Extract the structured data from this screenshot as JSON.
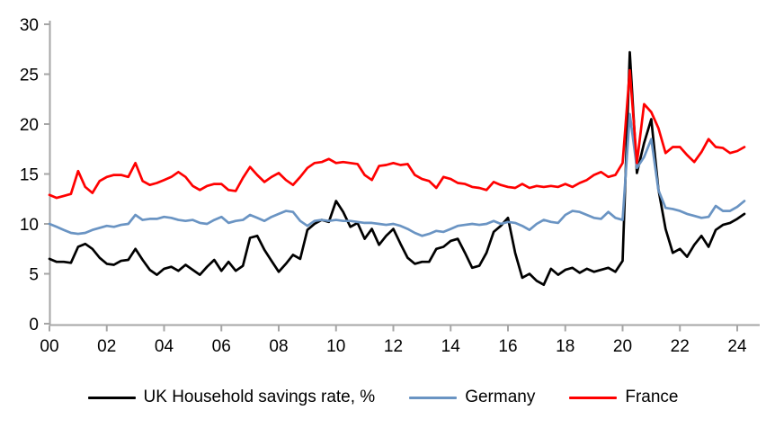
{
  "chart_data": {
    "type": "line",
    "x_unit": "quarterly",
    "x_start": "2000Q1",
    "x_end": "2024Q2",
    "x_tick_labels": [
      "00",
      "02",
      "04",
      "06",
      "08",
      "10",
      "12",
      "14",
      "16",
      "18",
      "20",
      "22",
      "24"
    ],
    "x_ticks_every_quarters": 8,
    "ylim": [
      0,
      30
    ],
    "y_ticks": [
      0,
      5,
      10,
      15,
      20,
      25,
      30
    ],
    "y_tick_labels": [
      "0",
      "5",
      "10",
      "15",
      "20",
      "25",
      "30"
    ],
    "grid": false,
    "legend_position": "bottom",
    "axis_color": "#a6a6a6",
    "background": "#ffffff",
    "series": [
      {
        "name": "UK Household savings rate, %",
        "color": "#000000",
        "values": [
          6.5,
          6.2,
          6.2,
          6.1,
          7.7,
          8.0,
          7.5,
          6.6,
          6.0,
          5.9,
          6.3,
          6.4,
          7.5,
          6.4,
          5.4,
          4.9,
          5.5,
          5.7,
          5.3,
          5.9,
          5.4,
          4.9,
          5.7,
          6.4,
          5.3,
          6.2,
          5.3,
          5.8,
          8.6,
          8.8,
          7.4,
          6.3,
          5.2,
          6.0,
          6.9,
          6.5,
          9.4,
          10.0,
          10.4,
          10.2,
          12.3,
          11.2,
          9.7,
          10.1,
          8.5,
          9.5,
          7.9,
          8.8,
          9.5,
          8.0,
          6.6,
          6.0,
          6.2,
          6.2,
          7.5,
          7.7,
          8.3,
          8.5,
          7.1,
          5.6,
          5.8,
          7.1,
          9.2,
          9.8,
          10.6,
          7.1,
          4.6,
          5.0,
          4.3,
          3.9,
          5.5,
          4.9,
          5.4,
          5.6,
          5.1,
          5.5,
          5.2,
          5.4,
          5.6,
          5.2,
          6.3,
          27.2,
          15.1,
          18.1,
          20.5,
          13.5,
          9.5,
          7.1,
          7.5,
          6.7,
          7.9,
          8.8,
          7.7,
          9.4,
          9.9,
          10.1,
          10.5,
          11.0
        ]
      },
      {
        "name": "Germany",
        "color": "#6a94c3",
        "values": [
          10.0,
          9.7,
          9.4,
          9.1,
          9.0,
          9.1,
          9.4,
          9.6,
          9.8,
          9.7,
          9.9,
          10.0,
          10.9,
          10.4,
          10.5,
          10.5,
          10.7,
          10.6,
          10.4,
          10.3,
          10.4,
          10.1,
          10.0,
          10.4,
          10.7,
          10.1,
          10.3,
          10.4,
          10.9,
          10.6,
          10.3,
          10.7,
          11.0,
          11.3,
          11.2,
          10.3,
          9.8,
          10.3,
          10.4,
          10.3,
          10.4,
          10.3,
          10.3,
          10.2,
          10.1,
          10.1,
          10.0,
          9.9,
          10.0,
          9.8,
          9.5,
          9.1,
          8.8,
          9.0,
          9.3,
          9.2,
          9.5,
          9.8,
          9.9,
          10.0,
          9.9,
          10.0,
          10.3,
          10.0,
          10.2,
          10.1,
          9.8,
          9.4,
          10.0,
          10.4,
          10.2,
          10.1,
          10.9,
          11.3,
          11.2,
          10.9,
          10.6,
          10.5,
          11.2,
          10.6,
          10.4,
          21.0,
          15.6,
          16.7,
          18.5,
          13.4,
          11.6,
          11.5,
          11.3,
          11.0,
          10.8,
          10.6,
          10.7,
          11.8,
          11.3,
          11.3,
          11.7,
          12.3
        ]
      },
      {
        "name": "France",
        "color": "#ff0000",
        "values": [
          12.9,
          12.6,
          12.8,
          13.0,
          15.3,
          13.7,
          13.1,
          14.3,
          14.7,
          14.9,
          14.9,
          14.7,
          16.1,
          14.3,
          13.9,
          14.1,
          14.4,
          14.7,
          15.2,
          14.7,
          13.8,
          13.4,
          13.8,
          14.0,
          14.0,
          13.4,
          13.3,
          14.6,
          15.7,
          14.9,
          14.2,
          14.7,
          15.1,
          14.4,
          13.9,
          14.7,
          15.6,
          16.1,
          16.2,
          16.5,
          16.1,
          16.2,
          16.1,
          16.0,
          14.9,
          14.4,
          15.8,
          15.9,
          16.1,
          15.9,
          16.0,
          14.9,
          14.5,
          14.3,
          13.6,
          14.7,
          14.5,
          14.1,
          14.0,
          13.7,
          13.6,
          13.4,
          14.2,
          13.9,
          13.7,
          13.6,
          14.0,
          13.6,
          13.8,
          13.7,
          13.8,
          13.7,
          14.0,
          13.7,
          14.1,
          14.4,
          14.9,
          15.2,
          14.7,
          14.9,
          16.1,
          25.4,
          16.1,
          22.0,
          21.2,
          19.6,
          17.1,
          17.7,
          17.7,
          16.9,
          16.2,
          17.2,
          18.5,
          17.7,
          17.6,
          17.1,
          17.3,
          17.7
        ]
      }
    ]
  }
}
